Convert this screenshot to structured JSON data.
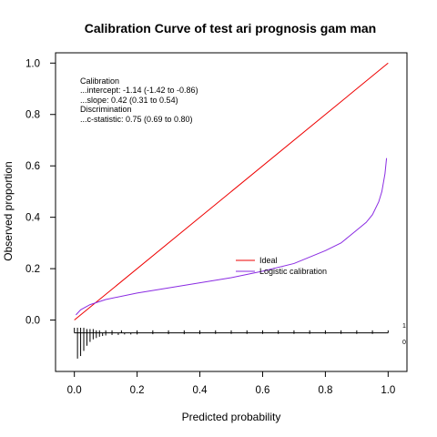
{
  "chart_data": {
    "type": "line",
    "title": "Calibration Curve of test ari prognosis gam man",
    "xlabel": "Predicted probability",
    "ylabel": "Observed proportion",
    "xlim": [
      -0.06,
      1.06
    ],
    "ylim": [
      -0.2,
      1.04
    ],
    "xticks": [
      0.0,
      0.2,
      0.4,
      0.6,
      0.8,
      1.0
    ],
    "xtick_labels": [
      "0.0",
      "0.2",
      "0.4",
      "0.6",
      "0.8",
      "1.0"
    ],
    "yticks": [
      0.0,
      0.2,
      0.4,
      0.6,
      0.8,
      1.0
    ],
    "ytick_labels": [
      "0.0",
      "0.2",
      "0.4",
      "0.6",
      "0.8",
      "1.0"
    ],
    "annotations": [
      "Calibration",
      "...intercept: -1.14 (-1.42 to -0.86)",
      "...slope: 0.42 (0.31 to 0.54)",
      "Discrimination",
      "...c-statistic: 0.75 (0.69 to 0.80)"
    ],
    "legend": {
      "placement": "center-right"
    },
    "series": [
      {
        "name": "Ideal",
        "color": "#ee0000",
        "x": [
          0.0,
          1.0
        ],
        "y": [
          0.0,
          1.0
        ]
      },
      {
        "name": "Logistic calibration",
        "color": "#8a2be2",
        "x": [
          0.005,
          0.02,
          0.05,
          0.1,
          0.2,
          0.3,
          0.4,
          0.5,
          0.6,
          0.7,
          0.8,
          0.85,
          0.9,
          0.93,
          0.95,
          0.97,
          0.98,
          0.99,
          0.995
        ],
        "y": [
          0.02,
          0.04,
          0.06,
          0.08,
          0.105,
          0.125,
          0.145,
          0.165,
          0.19,
          0.22,
          0.27,
          0.3,
          0.35,
          0.38,
          0.41,
          0.46,
          0.5,
          0.57,
          0.63
        ]
      }
    ],
    "spikes": {
      "baseline": -0.05,
      "labels": [
        "1",
        "0"
      ],
      "positive_x": [
        0.0,
        0.01,
        0.02,
        0.03,
        0.04,
        0.05,
        0.06,
        0.07,
        0.08,
        0.1,
        0.12,
        0.15,
        0.2,
        0.25,
        0.3,
        0.35,
        0.4,
        0.45,
        0.5,
        0.55,
        0.6,
        0.65,
        0.7,
        0.75,
        0.8,
        0.85,
        0.9,
        0.95,
        1.0
      ],
      "positive_h": [
        0.02,
        0.02,
        0.02,
        0.02,
        0.015,
        0.015,
        0.015,
        0.01,
        0.01,
        0.01,
        0.01,
        0.01,
        0.01,
        0.01,
        0.01,
        0.01,
        0.01,
        0.01,
        0.01,
        0.01,
        0.01,
        0.01,
        0.01,
        0.01,
        0.01,
        0.01,
        0.01,
        0.01,
        0.01
      ],
      "negative_x": [
        0.01,
        0.02,
        0.03,
        0.04,
        0.05,
        0.06,
        0.07,
        0.08,
        0.09,
        0.1,
        0.12,
        0.14,
        0.16,
        0.18,
        0.2,
        0.25,
        0.3,
        0.35,
        0.4,
        0.45,
        0.5,
        0.55,
        0.6,
        0.65,
        0.7,
        0.75,
        0.8,
        0.85,
        0.9,
        0.95
      ],
      "negative_h": [
        0.1,
        0.09,
        0.07,
        0.05,
        0.035,
        0.025,
        0.02,
        0.015,
        0.012,
        0.01,
        0.008,
        0.008,
        0.006,
        0.006,
        0.006,
        0.005,
        0.005,
        0.005,
        0.005,
        0.004,
        0.004,
        0.004,
        0.004,
        0.004,
        0.004,
        0.004,
        0.004,
        0.004,
        0.004,
        0.004
      ]
    }
  }
}
